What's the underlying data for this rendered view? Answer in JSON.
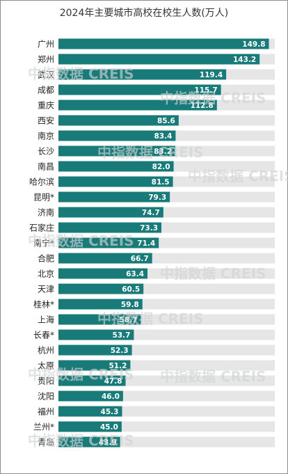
{
  "chart_data": {
    "type": "bar",
    "orientation": "horizontal",
    "title": "2024年主要城市高校在校生人数(万人)",
    "categories": [
      "广州",
      "郑州",
      "武汉",
      "成都",
      "重庆",
      "西安",
      "南京",
      "长沙",
      "南昌",
      "哈尔滨",
      "昆明*",
      "济南",
      "石家庄",
      "南宁*",
      "合肥",
      "北京",
      "天津",
      "桂林*",
      "上海",
      "长春*",
      "杭州",
      "太原",
      "贵阳",
      "沈阳",
      "福州",
      "兰州*",
      "青岛"
    ],
    "values": [
      149.8,
      143.2,
      119.4,
      115.7,
      112.8,
      85.6,
      83.4,
      83.2,
      82.0,
      81.5,
      79.3,
      74.7,
      73.3,
      71.4,
      66.7,
      63.4,
      60.5,
      59.8,
      58.7,
      53.7,
      52.3,
      51.2,
      47.8,
      46.0,
      45.3,
      45.0,
      43.9
    ],
    "value_labels": [
      "149.8",
      "143.2",
      "119.4",
      "115.7",
      "112.8",
      "85.6",
      "83.4",
      "83.2",
      "82.0",
      "81.5",
      "79.3",
      "74.7",
      "73.3",
      "71.4",
      "66.7",
      "63.4",
      "60.5",
      "59.8",
      "58.7",
      "53.7",
      "52.3",
      "51.2",
      "47.8",
      "46.0",
      "45.3",
      "45.0",
      "43.9"
    ],
    "xlim": [
      0,
      154
    ],
    "grid": false,
    "bar_color": "#197a7a",
    "track_color": "#e6e6e6",
    "watermark_text": "中指数据 CREIS"
  }
}
